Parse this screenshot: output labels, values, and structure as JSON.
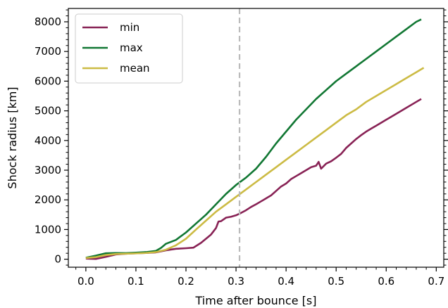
{
  "chart_data": {
    "type": "line",
    "xlabel": "Time after bounce [s]",
    "ylabel": "Shock radius [km]",
    "xlim": [
      -0.035,
      0.715
    ],
    "ylim": [
      -270,
      8450
    ],
    "xticks": [
      0.0,
      0.1,
      0.2,
      0.3,
      0.4,
      0.5,
      0.6,
      0.7
    ],
    "xtick_labels": [
      "0.0",
      "0.1",
      "0.2",
      "0.3",
      "0.4",
      "0.5",
      "0.6",
      "0.7"
    ],
    "yticks": [
      0,
      1000,
      2000,
      3000,
      4000,
      5000,
      6000,
      7000,
      8000
    ],
    "ytick_labels": [
      "0",
      "1000",
      "2000",
      "3000",
      "4000",
      "5000",
      "6000",
      "7000",
      "8000"
    ],
    "grid": false,
    "legend_position": "top-left",
    "vline": {
      "x": 0.307,
      "style": "dashed",
      "color": "#bbbbbb"
    },
    "series": [
      {
        "name": "min",
        "color": "#882255",
        "points": [
          [
            0.0,
            20
          ],
          [
            0.02,
            10
          ],
          [
            0.04,
            80
          ],
          [
            0.06,
            160
          ],
          [
            0.08,
            185
          ],
          [
            0.1,
            200
          ],
          [
            0.12,
            210
          ],
          [
            0.14,
            230
          ],
          [
            0.16,
            300
          ],
          [
            0.18,
            350
          ],
          [
            0.2,
            370
          ],
          [
            0.215,
            390
          ],
          [
            0.23,
            550
          ],
          [
            0.25,
            830
          ],
          [
            0.26,
            1050
          ],
          [
            0.265,
            1270
          ],
          [
            0.27,
            1280
          ],
          [
            0.28,
            1400
          ],
          [
            0.29,
            1430
          ],
          [
            0.3,
            1480
          ],
          [
            0.31,
            1560
          ],
          [
            0.32,
            1650
          ],
          [
            0.33,
            1760
          ],
          [
            0.34,
            1850
          ],
          [
            0.35,
            1950
          ],
          [
            0.36,
            2050
          ],
          [
            0.37,
            2150
          ],
          [
            0.38,
            2300
          ],
          [
            0.39,
            2450
          ],
          [
            0.4,
            2550
          ],
          [
            0.41,
            2700
          ],
          [
            0.42,
            2800
          ],
          [
            0.43,
            2900
          ],
          [
            0.44,
            3000
          ],
          [
            0.45,
            3100
          ],
          [
            0.46,
            3150
          ],
          [
            0.465,
            3280
          ],
          [
            0.47,
            3050
          ],
          [
            0.48,
            3220
          ],
          [
            0.49,
            3300
          ],
          [
            0.5,
            3420
          ],
          [
            0.51,
            3550
          ],
          [
            0.52,
            3750
          ],
          [
            0.53,
            3900
          ],
          [
            0.54,
            4050
          ],
          [
            0.55,
            4180
          ],
          [
            0.56,
            4300
          ],
          [
            0.57,
            4400
          ],
          [
            0.58,
            4500
          ],
          [
            0.6,
            4700
          ],
          [
            0.62,
            4900
          ],
          [
            0.64,
            5100
          ],
          [
            0.66,
            5300
          ],
          [
            0.67,
            5400
          ]
        ]
      },
      {
        "name": "max",
        "color": "#117733",
        "points": [
          [
            0.0,
            50
          ],
          [
            0.02,
            120
          ],
          [
            0.04,
            200
          ],
          [
            0.06,
            210
          ],
          [
            0.08,
            205
          ],
          [
            0.1,
            220
          ],
          [
            0.12,
            240
          ],
          [
            0.14,
            280
          ],
          [
            0.15,
            380
          ],
          [
            0.16,
            520
          ],
          [
            0.18,
            650
          ],
          [
            0.2,
            900
          ],
          [
            0.22,
            1200
          ],
          [
            0.24,
            1500
          ],
          [
            0.26,
            1850
          ],
          [
            0.28,
            2200
          ],
          [
            0.3,
            2500
          ],
          [
            0.32,
            2750
          ],
          [
            0.34,
            3050
          ],
          [
            0.36,
            3450
          ],
          [
            0.38,
            3900
          ],
          [
            0.4,
            4300
          ],
          [
            0.42,
            4700
          ],
          [
            0.44,
            5050
          ],
          [
            0.46,
            5400
          ],
          [
            0.48,
            5700
          ],
          [
            0.5,
            6000
          ],
          [
            0.52,
            6250
          ],
          [
            0.54,
            6500
          ],
          [
            0.56,
            6750
          ],
          [
            0.58,
            7000
          ],
          [
            0.6,
            7250
          ],
          [
            0.62,
            7500
          ],
          [
            0.64,
            7750
          ],
          [
            0.66,
            8000
          ],
          [
            0.67,
            8080
          ]
        ]
      },
      {
        "name": "mean",
        "color": "#CCBB44",
        "points": [
          [
            0.0,
            40
          ],
          [
            0.02,
            70
          ],
          [
            0.04,
            140
          ],
          [
            0.06,
            175
          ],
          [
            0.08,
            185
          ],
          [
            0.1,
            195
          ],
          [
            0.12,
            210
          ],
          [
            0.14,
            240
          ],
          [
            0.16,
            320
          ],
          [
            0.18,
            470
          ],
          [
            0.2,
            690
          ],
          [
            0.22,
            1000
          ],
          [
            0.24,
            1300
          ],
          [
            0.26,
            1600
          ],
          [
            0.28,
            1850
          ],
          [
            0.3,
            2100
          ],
          [
            0.32,
            2350
          ],
          [
            0.34,
            2600
          ],
          [
            0.36,
            2850
          ],
          [
            0.38,
            3100
          ],
          [
            0.4,
            3350
          ],
          [
            0.42,
            3600
          ],
          [
            0.44,
            3850
          ],
          [
            0.46,
            4100
          ],
          [
            0.48,
            4350
          ],
          [
            0.5,
            4600
          ],
          [
            0.52,
            4850
          ],
          [
            0.54,
            5050
          ],
          [
            0.56,
            5300
          ],
          [
            0.58,
            5500
          ],
          [
            0.6,
            5700
          ],
          [
            0.62,
            5900
          ],
          [
            0.64,
            6100
          ],
          [
            0.66,
            6300
          ],
          [
            0.675,
            6450
          ]
        ]
      }
    ]
  }
}
